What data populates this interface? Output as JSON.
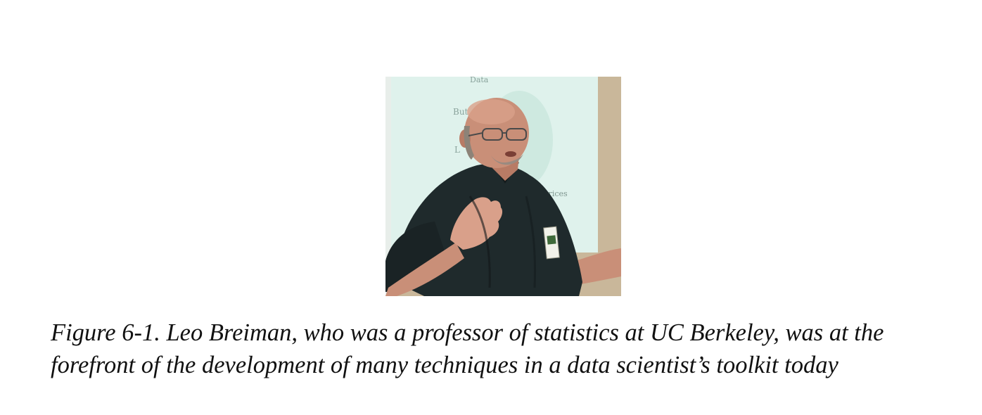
{
  "figure": {
    "photo": {
      "subject": "speaker-photo",
      "slide_text": [
        "Data",
        "But",
        "L",
        "ar Matrices"
      ]
    },
    "caption": {
      "line_1": "Figure 6-1. Leo Breiman, who was a professor of statistics at UC Berkeley, was at the",
      "line_2": "forefront of the development of many techniques in a data scientist’s toolkit today"
    }
  },
  "colors": {
    "background": "#ffffff",
    "caption_text": "#111111",
    "slide_background": "#dff2ec",
    "wall": "#c9b79a",
    "shirt": "#1f2a2c",
    "skin": "#c98f78"
  }
}
